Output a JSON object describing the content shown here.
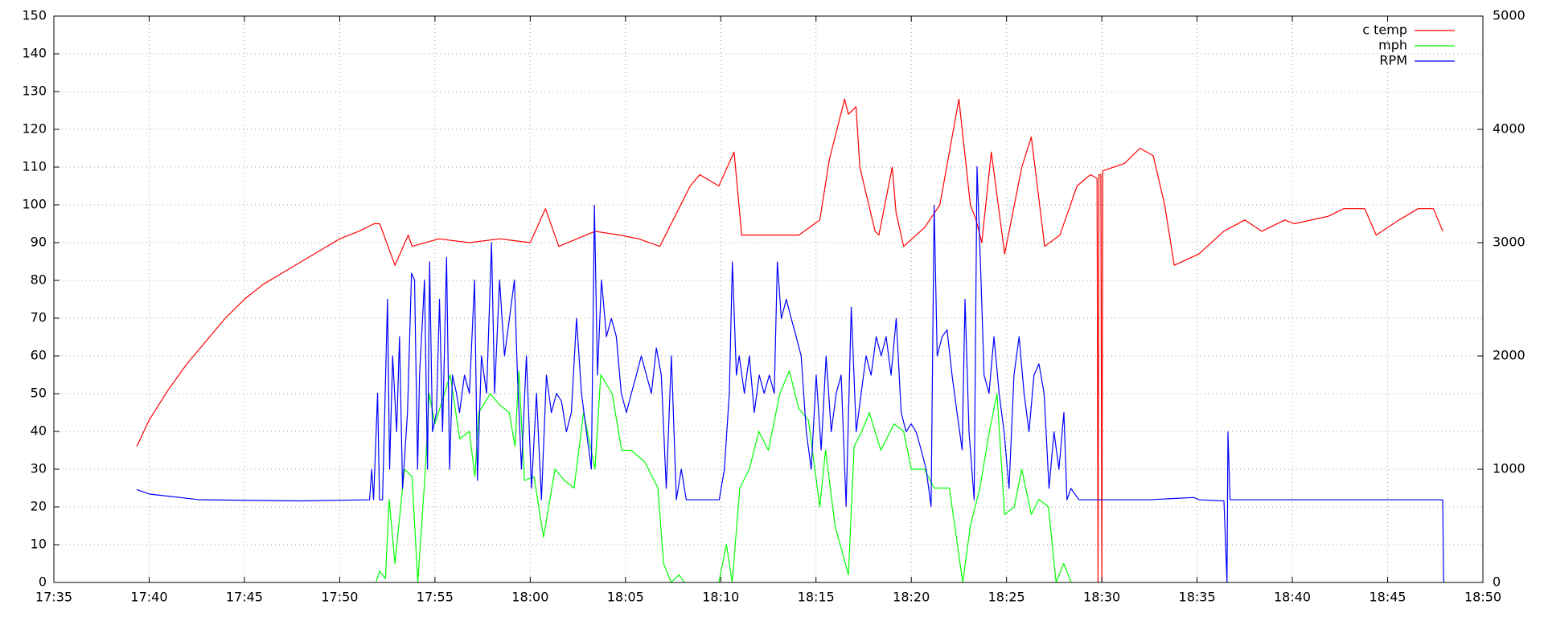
{
  "chart_data": {
    "type": "line",
    "xlim": [
      1055,
      1130
    ],
    "xticks": [
      {
        "value": 1055,
        "label": "17:35"
      },
      {
        "value": 1060,
        "label": "17:40"
      },
      {
        "value": 1065,
        "label": "17:45"
      },
      {
        "value": 1070,
        "label": "17:50"
      },
      {
        "value": 1075,
        "label": "17:55"
      },
      {
        "value": 1080,
        "label": "18:00"
      },
      {
        "value": 1085,
        "label": "18:05"
      },
      {
        "value": 1090,
        "label": "18:10"
      },
      {
        "value": 1095,
        "label": "18:15"
      },
      {
        "value": 1100,
        "label": "18:20"
      },
      {
        "value": 1105,
        "label": "18:25"
      },
      {
        "value": 1110,
        "label": "18:30"
      },
      {
        "value": 1115,
        "label": "18:35"
      },
      {
        "value": 1120,
        "label": "18:40"
      },
      {
        "value": 1125,
        "label": "18:45"
      },
      {
        "value": 1130,
        "label": "18:50"
      }
    ],
    "ylim": [
      0,
      150
    ],
    "yticks": [
      0,
      10,
      20,
      30,
      40,
      50,
      60,
      70,
      80,
      90,
      100,
      110,
      120,
      130,
      140,
      150
    ],
    "y2lim": [
      0,
      5000
    ],
    "y2ticks": [
      0,
      1000,
      2000,
      3000,
      4000,
      5000
    ],
    "grid": true,
    "legend": "top right",
    "series": [
      {
        "name": "c temp",
        "color": "#ff0000",
        "x": [
          1059.35,
          1060,
          1061,
          1062,
          1063,
          1064,
          1065,
          1066,
          1067,
          1068,
          1069,
          1070,
          1071,
          1071.8,
          1072.1,
          1072.9,
          1073.6,
          1073.8,
          1075.2,
          1076.8,
          1078.4,
          1080.0,
          1080.8,
          1081.5,
          1083.4,
          1084.7,
          1085.7,
          1086.8,
          1088.4,
          1088.9,
          1089.9,
          1090.7,
          1091.1,
          1092.0,
          1094.1,
          1095.2,
          1095.7,
          1096.5,
          1096.7,
          1097.1,
          1097.3,
          1098.1,
          1098.3,
          1099.0,
          1099.2,
          1099.6,
          1100.7,
          1101.5,
          1102.5,
          1103.1,
          1103.4,
          1103.7,
          1104.2,
          1104.9,
          1105.8,
          1106.3,
          1107.0,
          1107.8,
          1108.7,
          1109.4,
          1109.75,
          1109.8,
          1109.85,
          1109.95,
          1110.0,
          1110.05,
          1111.2,
          1112.0,
          1112.7,
          1113.3,
          1113.8,
          1115.1,
          1116.4,
          1117.5,
          1118.4,
          1119.6,
          1120.1,
          1121.9,
          1122.7,
          1123.8,
          1124.4,
          1125.6,
          1126.6,
          1127.4,
          1127.9
        ],
        "values": [
          36,
          43,
          51,
          58,
          64,
          70,
          75,
          79,
          82,
          85,
          88,
          91,
          93,
          95,
          95,
          84,
          92,
          89,
          91,
          90,
          91,
          90,
          99,
          89,
          93,
          92,
          91,
          89,
          105,
          108,
          105,
          114,
          92,
          92,
          92,
          96,
          112,
          128,
          124,
          126,
          110,
          93,
          92,
          110,
          98,
          89,
          94,
          100,
          128,
          100,
          96,
          90,
          114,
          87,
          110,
          118,
          89,
          92,
          105,
          108,
          107,
          0,
          108,
          108,
          0,
          109,
          111,
          115,
          113,
          100,
          84,
          87,
          93,
          96,
          93,
          96,
          95,
          97,
          99,
          99,
          92,
          96,
          99,
          99,
          93
        ]
      },
      {
        "name": "mph",
        "color": "#00ff00",
        "x": [
          1071.9,
          1072.1,
          1072.4,
          1072.6,
          1072.9,
          1073.4,
          1073.8,
          1074.1,
          1074.5,
          1074.7,
          1075.0,
          1075.5,
          1075.8,
          1076.3,
          1076.8,
          1077.1,
          1077.3,
          1077.9,
          1078.4,
          1078.9,
          1079.2,
          1079.4,
          1079.7,
          1080.2,
          1080.7,
          1081.3,
          1081.8,
          1082.3,
          1082.8,
          1083.4,
          1083.7,
          1084.3,
          1084.8,
          1085.3,
          1086.0,
          1086.7,
          1087.0,
          1087.4,
          1087.8,
          1088.1,
          1089.0,
          1089.9,
          1090.3,
          1090.6,
          1091.0,
          1091.5,
          1092.0,
          1092.5,
          1093.1,
          1093.6,
          1094.1,
          1094.6,
          1095.2,
          1095.5,
          1096.0,
          1096.7,
          1097.0,
          1097.4,
          1097.8,
          1098.4,
          1099.1,
          1099.6,
          1100.0,
          1100.7,
          1101.2,
          1102.0,
          1102.7,
          1103.1,
          1103.6,
          1104.1,
          1104.5,
          1104.9,
          1105.4,
          1105.8,
          1106.3,
          1106.7,
          1107.2,
          1107.6,
          1108.0,
          1108.4
        ],
        "values": [
          0,
          3,
          1,
          22,
          5,
          30,
          28,
          0,
          30,
          50,
          42,
          50,
          55,
          38,
          40,
          28,
          45,
          50,
          47,
          45,
          36,
          56,
          27,
          28,
          12,
          30,
          27,
          25,
          45,
          30,
          55,
          50,
          35,
          35,
          32,
          25,
          5,
          0,
          2,
          0,
          null,
          0,
          10,
          0,
          25,
          30,
          40,
          35,
          50,
          56,
          46,
          43,
          20,
          35,
          15,
          2,
          36,
          40,
          45,
          35,
          42,
          40,
          30,
          30,
          25,
          25,
          0,
          15,
          25,
          40,
          50,
          18,
          20,
          30,
          18,
          22,
          20,
          0,
          5,
          0
        ]
      },
      {
        "name": "RPM",
        "color": "#0000ff",
        "axis": "y2",
        "x": [
          1059.35,
          1060.03,
          1062.66,
          1067.9,
          1071.57,
          1071.68,
          1071.78,
          1071.99,
          1072.09,
          1072.25,
          1072.51,
          1072.62,
          1072.78,
          1072.99,
          1073.14,
          1073.3,
          1073.56,
          1073.77,
          1073.93,
          1074.09,
          1074.19,
          1074.35,
          1074.45,
          1074.61,
          1074.72,
          1074.87,
          1075.08,
          1075.24,
          1075.4,
          1075.61,
          1075.77,
          1075.92,
          1076.13,
          1076.29,
          1076.55,
          1076.81,
          1077.08,
          1077.23,
          1077.44,
          1077.71,
          1077.97,
          1078.13,
          1078.39,
          1078.65,
          1078.91,
          1079.17,
          1079.33,
          1079.54,
          1079.8,
          1080.07,
          1080.33,
          1080.59,
          1080.85,
          1081.11,
          1081.38,
          1081.64,
          1081.9,
          1082.16,
          1082.43,
          1082.69,
          1082.95,
          1083.21,
          1083.37,
          1083.53,
          1083.74,
          1084.0,
          1084.26,
          1084.52,
          1084.78,
          1085.05,
          1085.31,
          1085.57,
          1085.83,
          1086.1,
          1086.36,
          1086.62,
          1086.88,
          1087.14,
          1087.41,
          1087.67,
          1087.93,
          1088.19,
          1088.61,
          1089.92,
          1090.19,
          1090.45,
          1090.61,
          1090.82,
          1090.97,
          1091.24,
          1091.5,
          1091.76,
          1092.02,
          1092.28,
          1092.55,
          1092.81,
          1092.97,
          1093.18,
          1093.44,
          1093.7,
          1093.96,
          1094.22,
          1094.49,
          1094.75,
          1095.01,
          1095.27,
          1095.53,
          1095.8,
          1096.06,
          1096.32,
          1096.58,
          1096.85,
          1097.11,
          1097.37,
          1097.63,
          1097.89,
          1098.16,
          1098.42,
          1098.68,
          1098.94,
          1099.21,
          1099.47,
          1099.73,
          1099.99,
          1100.25,
          1100.52,
          1100.78,
          1101.04,
          1101.2,
          1101.36,
          1101.62,
          1101.88,
          1102.14,
          1102.4,
          1102.67,
          1102.82,
          1103.03,
          1103.3,
          1103.45,
          1103.66,
          1103.82,
          1104.08,
          1104.34,
          1104.61,
          1104.87,
          1105.13,
          1105.39,
          1105.66,
          1105.92,
          1106.18,
          1106.44,
          1106.7,
          1106.97,
          1107.23,
          1107.49,
          1107.75,
          1108.01,
          1108.17,
          1108.38,
          1108.8,
          1112.47,
          1114.83,
          1115.1,
          1116.41,
          1116.57,
          1116.62,
          1116.73,
          1120.34,
          1125.58,
          1127.89,
          1127.94
        ],
        "values": [
          820,
          780,
          730,
          720,
          730,
          1000,
          730,
          1670,
          730,
          730,
          2500,
          1000,
          2000,
          1330,
          2170,
          830,
          1500,
          2730,
          2670,
          1000,
          1830,
          2330,
          2670,
          1000,
          2830,
          1330,
          1500,
          2500,
          1330,
          2870,
          1000,
          1830,
          1670,
          1500,
          1830,
          1670,
          2670,
          900,
          2000,
          1670,
          3000,
          1670,
          2670,
          2000,
          2330,
          2670,
          1830,
          1000,
          2000,
          830,
          1670,
          730,
          1830,
          1500,
          1670,
          1600,
          1330,
          1500,
          2330,
          1670,
          1330,
          1000,
          3330,
          1830,
          2670,
          2170,
          2330,
          2170,
          1670,
          1500,
          1670,
          1830,
          2000,
          1830,
          1670,
          2070,
          1830,
          830,
          2000,
          730,
          1000,
          730,
          730,
          730,
          1000,
          1670,
          2830,
          1830,
          2000,
          1670,
          2000,
          1500,
          1830,
          1670,
          1830,
          1670,
          2830,
          2330,
          2500,
          2330,
          2170,
          2000,
          1330,
          1000,
          1830,
          1170,
          2000,
          1330,
          1670,
          1830,
          670,
          2430,
          1330,
          1670,
          2000,
          1830,
          2170,
          2000,
          2170,
          1830,
          2330,
          1500,
          1330,
          1400,
          1330,
          1170,
          1000,
          670,
          3330,
          2000,
          2170,
          2230,
          1830,
          1500,
          1170,
          2500,
          1330,
          730,
          3670,
          2670,
          1830,
          1670,
          2170,
          1670,
          1330,
          830,
          1830,
          2170,
          1670,
          1330,
          1830,
          1930,
          1670,
          830,
          1330,
          1000,
          1500,
          730,
          830,
          730,
          730,
          750,
          730,
          720,
          0,
          1330,
          730,
          730,
          730,
          730,
          0
        ]
      }
    ]
  }
}
